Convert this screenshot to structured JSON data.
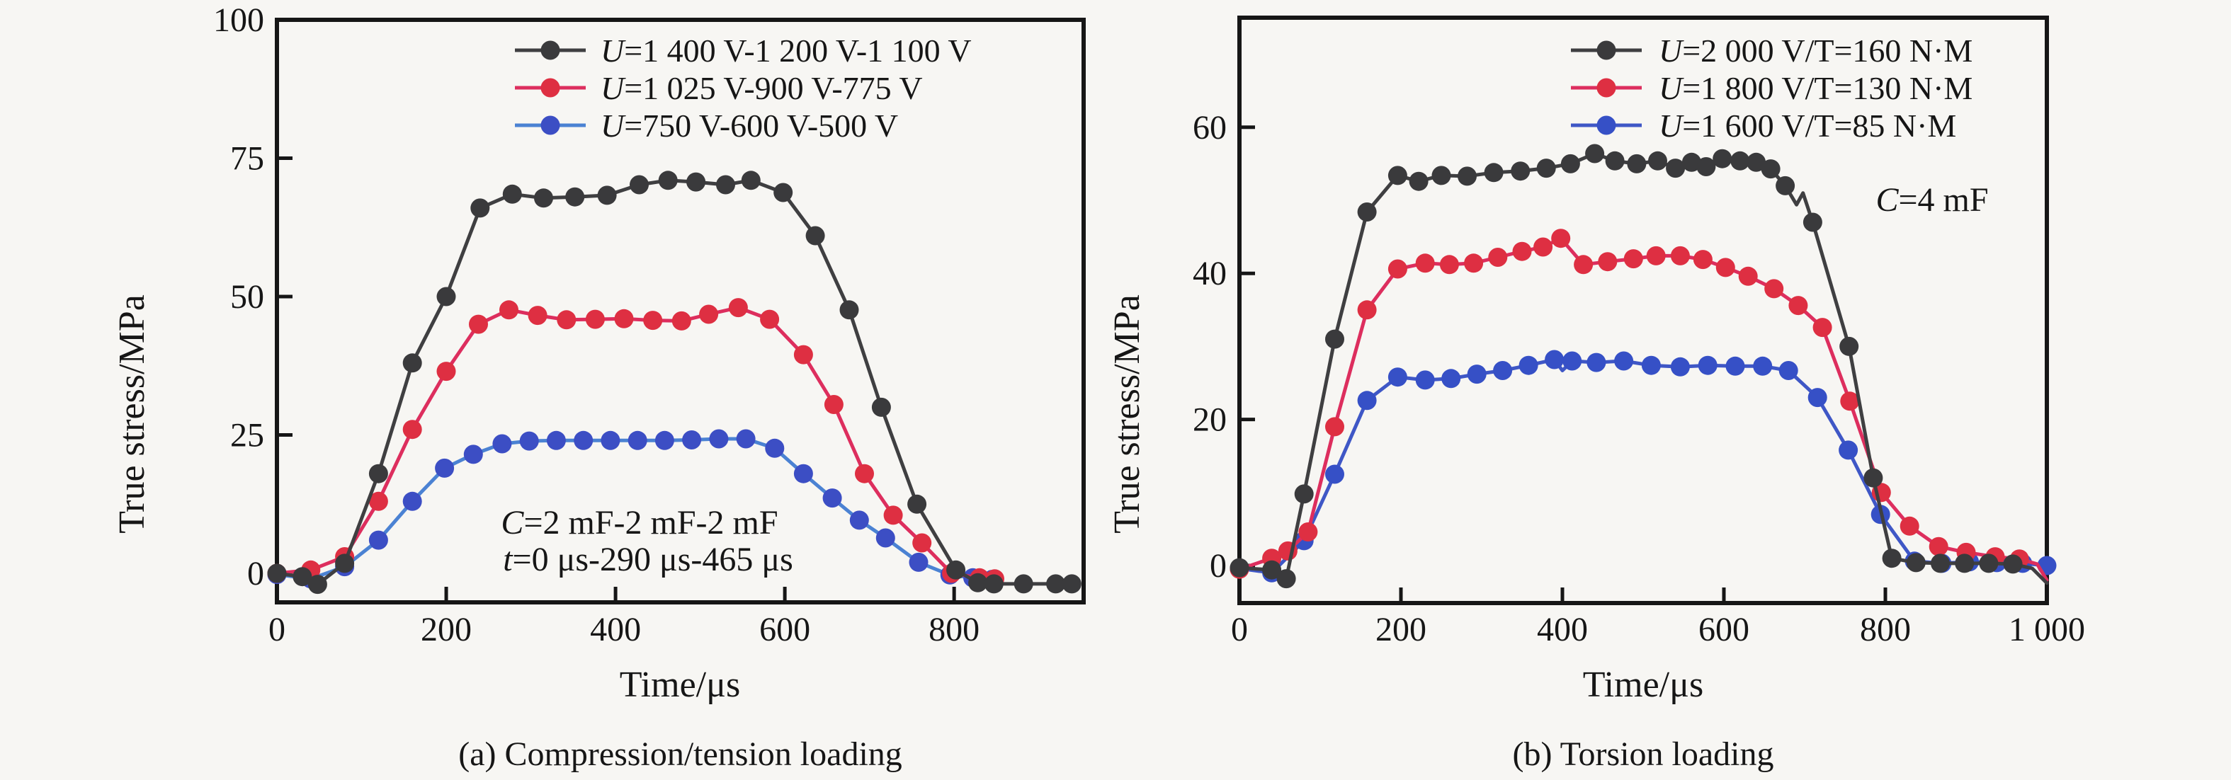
{
  "figure": {
    "background": "#f7f6f3",
    "frame_color": "#161616"
  },
  "chart_data": [
    {
      "id": "a",
      "type": "line",
      "caption": "(a) Compression/tension loading",
      "xlabel": "Time/μs",
      "ylabel": "True stress/MPa",
      "xlim": [
        0,
        953
      ],
      "ylim": [
        -5.3,
        100
      ],
      "xticks": [
        0,
        200,
        400,
        600,
        800
      ],
      "xtick_labels": [
        "0",
        "200",
        "400",
        "600",
        "800"
      ],
      "yticks": [
        0,
        25,
        50,
        75,
        100
      ],
      "ytick_labels": [
        "0",
        "25",
        "50",
        "75",
        "100"
      ],
      "grid": false,
      "legend_position": "top-right-inside",
      "legend": [
        {
          "variable": "U",
          "rest": "=1 400 V-1 200 V-1 100 V",
          "line_color": "#3f3f41",
          "marker_color": "#3a3a3c"
        },
        {
          "variable": "U",
          "rest": "=1 025 V-900 V-775 V",
          "line_color": "#dd2e5e",
          "marker_color": "#de2f42"
        },
        {
          "variable": "U",
          "rest": "=750 V-600 V-500 V",
          "line_color": "#4b82d3",
          "marker_color": "#3c4ec4"
        }
      ],
      "annotations": [
        {
          "variable": "C",
          "rest": "=2 mF-2 mF-2 mF"
        },
        {
          "variable": "t",
          "rest": "=0 μs-290 μs-465 μs"
        }
      ],
      "series": [
        {
          "name": "U=750 V-600 V-500 V",
          "line_color": "#4b82d3",
          "marker_color": "#3c4ec4",
          "points": [
            [
              0,
              -0.2
            ],
            [
              40,
              -1
            ],
            [
              80,
              1.2
            ],
            [
              120,
              6
            ],
            [
              160,
              13
            ],
            [
              198,
              19
            ],
            [
              232,
              21.5
            ],
            [
              266,
              23.4
            ],
            [
              298,
              23.9
            ],
            [
              330,
              24
            ],
            [
              362,
              24
            ],
            [
              394,
              24
            ],
            [
              426,
              24
            ],
            [
              458,
              24
            ],
            [
              490,
              24.1
            ],
            [
              522,
              24.3
            ],
            [
              554,
              24.3
            ],
            [
              588,
              22.6
            ],
            [
              622,
              18
            ],
            [
              656,
              13.6
            ],
            [
              688,
              9.6
            ],
            [
              719,
              6.4
            ],
            [
              758,
              2
            ],
            [
              795,
              -0.3
            ],
            [
              822,
              -0.8
            ],
            [
              845,
              -1.1
            ]
          ]
        },
        {
          "name": "U=1 025 V-900 V-775 V",
          "line_color": "#dd2e5e",
          "marker_color": "#de2f42",
          "points": [
            [
              0,
              0
            ],
            [
              40,
              0.6
            ],
            [
              80,
              3
            ],
            [
              120,
              13
            ],
            [
              160,
              26
            ],
            [
              200,
              36.5
            ],
            [
              238,
              45
            ],
            [
              274,
              47.6
            ],
            [
              308,
              46.6
            ],
            [
              342,
              45.8
            ],
            [
              376,
              45.9
            ],
            [
              410,
              46
            ],
            [
              444,
              45.7
            ],
            [
              478,
              45.6
            ],
            [
              510,
              46.8
            ],
            [
              545,
              48
            ],
            [
              582,
              45.9
            ],
            [
              622,
              39.5
            ],
            [
              658,
              30.5
            ],
            [
              694,
              18
            ],
            [
              728,
              10.5
            ],
            [
              762,
              5.5
            ],
            [
              797,
              0
            ],
            [
              830,
              -0.8
            ],
            [
              848,
              -1
            ]
          ]
        },
        {
          "name": "U=1 400 V-1 200 V-1 100 V",
          "line_color": "#3f3f41",
          "marker_color": "#3a3a3c",
          "points": [
            [
              0,
              0
            ],
            [
              30,
              -0.6
            ],
            [
              48,
              -2
            ],
            [
              80,
              1.8
            ],
            [
              120,
              18
            ],
            [
              160,
              38
            ],
            [
              200,
              50
            ],
            [
              240,
              66
            ],
            [
              278,
              68.5
            ],
            [
              315,
              67.8
            ],
            [
              352,
              68
            ],
            [
              390,
              68.3
            ],
            [
              428,
              70.2
            ],
            [
              462,
              71
            ],
            [
              495,
              70.7
            ],
            [
              530,
              70.2
            ],
            [
              560,
              71
            ],
            [
              598,
              68.8
            ],
            [
              636,
              61
            ],
            [
              676,
              47.6
            ],
            [
              714,
              30
            ],
            [
              756,
              12.5
            ],
            [
              802,
              0.6
            ],
            [
              828,
              -1.7
            ],
            [
              847,
              -1.9
            ],
            [
              882,
              -1.9
            ],
            [
              920,
              -1.9
            ],
            [
              939,
              -1.9
            ]
          ]
        }
      ]
    },
    {
      "id": "b",
      "type": "line",
      "caption": "(b) Torsion loading",
      "xlabel": "Time/μs",
      "ylabel": "True stress/MPa",
      "xlim": [
        0,
        1000
      ],
      "ylim": [
        -5.1,
        75
      ],
      "xticks": [
        0,
        200,
        400,
        600,
        800,
        1000
      ],
      "xtick_labels": [
        "0",
        "200",
        "400",
        "600",
        "800",
        "1 000"
      ],
      "yticks": [
        0,
        20,
        40,
        60
      ],
      "ytick_labels": [
        "0",
        "20",
        "40",
        "60"
      ],
      "grid": false,
      "legend_position": "top-right-inside",
      "legend": [
        {
          "variable": "U",
          "rest": "=2 000 V/T=160 N·M",
          "line_color": "#3f3f41",
          "marker_color": "#3a3a3c"
        },
        {
          "variable": "U",
          "rest": "=1 800 V/T=130 N·M",
          "line_color": "#dd2e5e",
          "marker_color": "#de2f42"
        },
        {
          "variable": "U",
          "rest": "=1 600 V/T=85 N·M",
          "line_color": "#3f57c6",
          "marker_color": "#3650c6"
        }
      ],
      "annotations": [
        {
          "variable": "C",
          "rest": "=4 mF"
        }
      ],
      "series": [
        {
          "name": "U=1 600 V/T=85 N·M",
          "line_color": "#3f57c6",
          "marker_color": "#3650c6",
          "points": [
            [
              0,
              -0.4
            ],
            [
              40,
              -1
            ],
            [
              80,
              3.4
            ],
            [
              118,
              12.5
            ],
            [
              158,
              22.6
            ],
            [
              196,
              25.8
            ],
            [
              230,
              25.4
            ],
            [
              262,
              25.6
            ],
            [
              294,
              26.2
            ],
            [
              326,
              26.7
            ],
            [
              358,
              27.4
            ],
            [
              390,
              28.2
            ],
            [
              400,
              26.7,
              0
            ],
            [
              412,
              28
            ],
            [
              442,
              27.8
            ],
            [
              476,
              28
            ],
            [
              510,
              27.4
            ],
            [
              546,
              27.2
            ],
            [
              580,
              27.4
            ],
            [
              614,
              27.3
            ],
            [
              648,
              27.3
            ],
            [
              680,
              26.7
            ],
            [
              716,
              23
            ],
            [
              754,
              15.8
            ],
            [
              794,
              7
            ],
            [
              836,
              0.6
            ],
            [
              870,
              0.3
            ],
            [
              904,
              0.5
            ],
            [
              938,
              0.4
            ],
            [
              970,
              0.3
            ],
            [
              1000,
              0
            ]
          ]
        },
        {
          "name": "U=1 800 V/T=130 N·M",
          "line_color": "#dd2e5e",
          "marker_color": "#de2f42",
          "points": [
            [
              0,
              -0.5
            ],
            [
              40,
              1
            ],
            [
              60,
              2
            ],
            [
              85,
              4.6
            ],
            [
              118,
              19
            ],
            [
              158,
              35
            ],
            [
              196,
              40.6
            ],
            [
              230,
              41.4
            ],
            [
              260,
              41.2
            ],
            [
              290,
              41.4
            ],
            [
              320,
              42.2
            ],
            [
              350,
              43
            ],
            [
              376,
              43.6
            ],
            [
              398,
              44.8
            ],
            [
              426,
              41.2
            ],
            [
              456,
              41.6
            ],
            [
              488,
              42
            ],
            [
              516,
              42.4
            ],
            [
              546,
              42.4
            ],
            [
              574,
              41.9
            ],
            [
              602,
              40.8
            ],
            [
              630,
              39.6
            ],
            [
              662,
              37.9
            ],
            [
              692,
              35.6
            ],
            [
              722,
              32.6
            ],
            [
              756,
              22.5
            ],
            [
              795,
              10
            ],
            [
              830,
              5.4
            ],
            [
              866,
              2.6
            ],
            [
              900,
              1.8
            ],
            [
              936,
              1.2
            ],
            [
              966,
              0.9
            ],
            [
              988,
              0.2,
              0
            ],
            [
              1000,
              -2,
              0
            ]
          ]
        },
        {
          "name": "U=2 000 V/T=160 N·M",
          "line_color": "#3f3f41",
          "marker_color": "#3a3a3c",
          "points": [
            [
              0,
              -0.3
            ],
            [
              40,
              -0.6
            ],
            [
              58,
              -1.8
            ],
            [
              80,
              9.8
            ],
            [
              118,
              31
            ],
            [
              158,
              48.4
            ],
            [
              196,
              53.4
            ],
            [
              222,
              52.6
            ],
            [
              250,
              53.4
            ],
            [
              282,
              53.3
            ],
            [
              315,
              53.8
            ],
            [
              348,
              54
            ],
            [
              380,
              54.4
            ],
            [
              410,
              55
            ],
            [
              440,
              56.4
            ],
            [
              465,
              55.4
            ],
            [
              492,
              55
            ],
            [
              518,
              55.4
            ],
            [
              540,
              54.4
            ],
            [
              560,
              55.2
            ],
            [
              578,
              54.6
            ],
            [
              598,
              55.7
            ],
            [
              620,
              55.4
            ],
            [
              640,
              55.2
            ],
            [
              658,
              54.3
            ],
            [
              676,
              52
            ],
            [
              690,
              49.4,
              0
            ],
            [
              698,
              51,
              0
            ],
            [
              710,
              47
            ],
            [
              755,
              30
            ],
            [
              785,
              12
            ],
            [
              808,
              1
            ],
            [
              838,
              0.4
            ],
            [
              868,
              0.3
            ],
            [
              898,
              0.3
            ],
            [
              928,
              0.3
            ],
            [
              958,
              0.2
            ],
            [
              982,
              -0.4,
              0
            ],
            [
              1000,
              -2.4,
              0
            ]
          ]
        }
      ]
    }
  ]
}
